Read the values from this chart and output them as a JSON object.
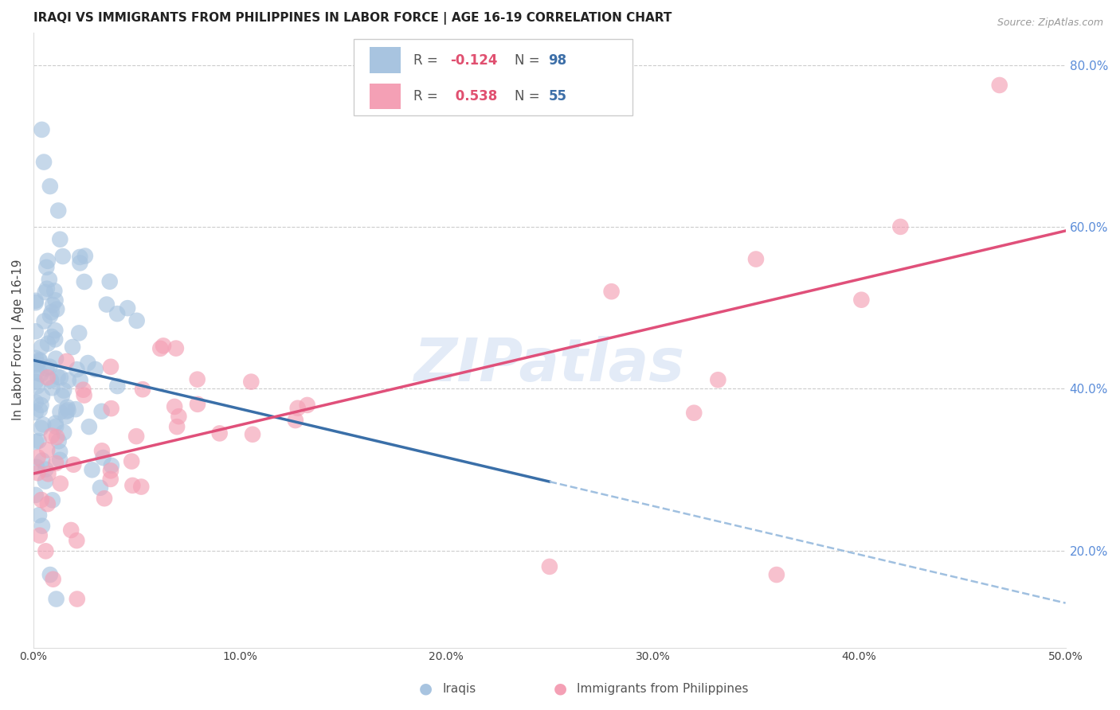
{
  "title": "IRAQI VS IMMIGRANTS FROM PHILIPPINES IN LABOR FORCE | AGE 16-19 CORRELATION CHART",
  "source": "Source: ZipAtlas.com",
  "ylabel": "In Labor Force | Age 16-19",
  "xlim": [
    0.0,
    0.5
  ],
  "ylim": [
    0.08,
    0.84
  ],
  "xtick_vals": [
    0.0,
    0.1,
    0.2,
    0.3,
    0.4,
    0.5
  ],
  "xtick_labels": [
    "0.0%",
    "10.0%",
    "20.0%",
    "30.0%",
    "40.0%",
    "50.0%"
  ],
  "yticks_right": [
    0.2,
    0.4,
    0.6,
    0.8
  ],
  "ytick_right_labels": [
    "20.0%",
    "40.0%",
    "60.0%",
    "80.0%"
  ],
  "grid_color": "#cccccc",
  "background_color": "#ffffff",
  "iraq_color": "#a8c4e0",
  "iraq_line_color": "#3a6fa8",
  "phil_color": "#f4a0b5",
  "phil_line_color": "#e0507a",
  "dash_line_color": "#a0c0e0",
  "watermark": "ZIPatlas",
  "legend_R_color": "#e05070",
  "legend_N_color": "#3d6fa8",
  "title_fontsize": 11,
  "axis_label_fontsize": 11,
  "tick_fontsize": 10,
  "legend_fontsize": 12
}
